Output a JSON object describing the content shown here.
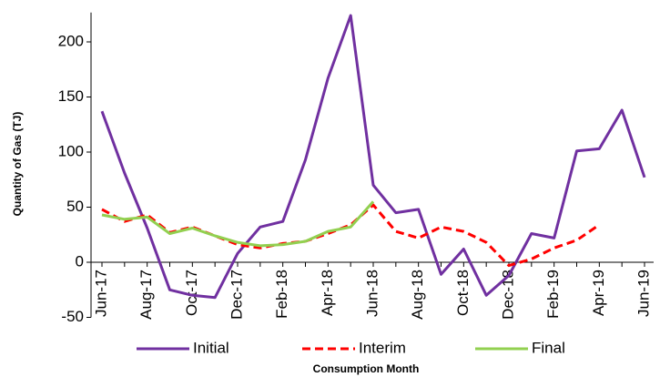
{
  "chart_data": {
    "type": "line",
    "x_label": "Consumption Month",
    "y_label": "Quantity of Gas (TJ)",
    "categories": [
      "Jun-17",
      null,
      "Aug-17",
      null,
      "Oct-17",
      null,
      "Dec-17",
      null,
      "Feb-18",
      null,
      "Apr-18",
      null,
      "Jun-18",
      null,
      "Aug-18",
      null,
      "Oct-18",
      null,
      "Dec-18",
      null,
      "Feb-19",
      null,
      "Apr-19",
      null,
      "Jun-19"
    ],
    "series": [
      {
        "name": "Initial",
        "color": "#7030a0",
        "dash": false,
        "values": [
          137,
          81,
          31,
          -25,
          -30,
          -32,
          8,
          32,
          37,
          93,
          167,
          224,
          70,
          45,
          48,
          -11,
          12,
          -30,
          -12,
          26,
          22,
          101,
          103,
          138,
          77
        ]
      },
      {
        "name": "Interim",
        "color": "#ff0000",
        "dash": true,
        "values": [
          48,
          37,
          43,
          27,
          32,
          24,
          16,
          13,
          17,
          19,
          26,
          34,
          52,
          28,
          22,
          32,
          28,
          18,
          -3,
          3,
          13,
          20,
          34,
          null,
          null
        ]
      },
      {
        "name": "Final",
        "color": "#92d050",
        "dash": false,
        "values": [
          43,
          39,
          41,
          26,
          31,
          24,
          18,
          15,
          16,
          19,
          28,
          32,
          55,
          null,
          null,
          null,
          null,
          null,
          null,
          null,
          null,
          null,
          null,
          null,
          null
        ]
      }
    ],
    "ylim": [
      -50,
      225
    ],
    "yticks": [
      -50,
      0,
      50,
      100,
      150,
      200
    ],
    "legend": "bottom"
  }
}
